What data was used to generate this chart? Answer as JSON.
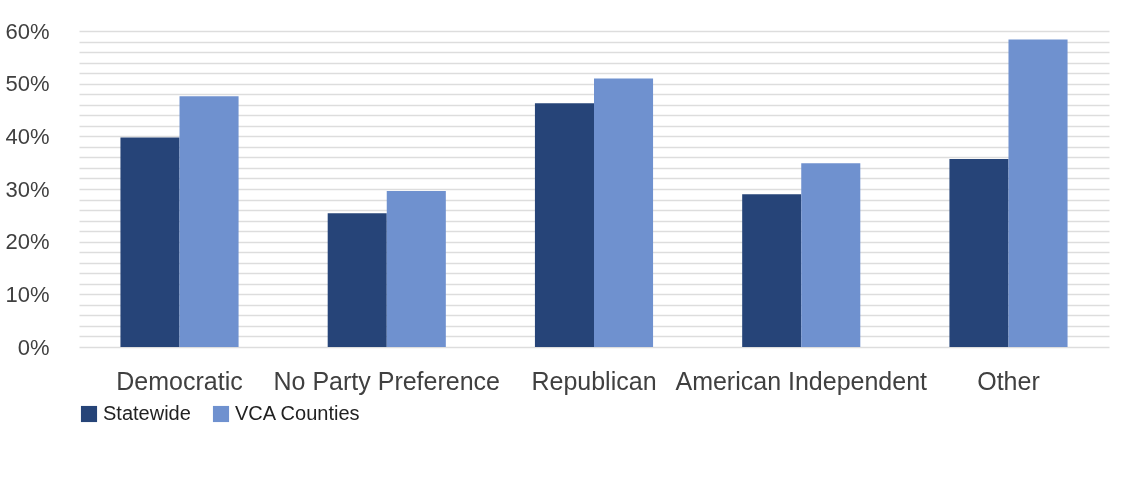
{
  "chart_data": {
    "type": "bar",
    "categories": [
      "Democratic",
      "No Party Preference",
      "Republican",
      "American Independent",
      "Other"
    ],
    "series": [
      {
        "name": "Statewide",
        "color": "#264478",
        "values": [
          39.8,
          25.4,
          46.3,
          29.0,
          35.7
        ]
      },
      {
        "name": "VCA Counties",
        "color": "#6f91cf",
        "values": [
          47.6,
          29.6,
          51.0,
          34.9,
          58.4
        ]
      }
    ],
    "ylim": [
      0,
      60
    ],
    "yticks": [
      {
        "value": 0,
        "label": "0%"
      },
      {
        "value": 2,
        "label": null
      },
      {
        "value": 4,
        "label": null
      },
      {
        "value": 6,
        "label": null
      },
      {
        "value": 8,
        "label": null
      },
      {
        "value": 10,
        "label": "10%"
      },
      {
        "value": 12,
        "label": null
      },
      {
        "value": 14,
        "label": null
      },
      {
        "value": 16,
        "label": null
      },
      {
        "value": 18,
        "label": null
      },
      {
        "value": 20,
        "label": "20%"
      },
      {
        "value": 22,
        "label": null
      },
      {
        "value": 24,
        "label": null
      },
      {
        "value": 26,
        "label": null
      },
      {
        "value": 28,
        "label": null
      },
      {
        "value": 30,
        "label": "30%"
      },
      {
        "value": 32,
        "label": null
      },
      {
        "value": 34,
        "label": null
      },
      {
        "value": 36,
        "label": null
      },
      {
        "value": 38,
        "label": null
      },
      {
        "value": 40,
        "label": "40%"
      },
      {
        "value": 42,
        "label": null
      },
      {
        "value": 44,
        "label": null
      },
      {
        "value": 46,
        "label": null
      },
      {
        "value": 48,
        "label": null
      },
      {
        "value": 50,
        "label": "50%"
      },
      {
        "value": 52,
        "label": null
      },
      {
        "value": 54,
        "label": null
      },
      {
        "value": 56,
        "label": null
      },
      {
        "value": 58,
        "label": null
      },
      {
        "value": 60,
        "label": "60%"
      }
    ],
    "grid": "y",
    "legend": "bottom"
  }
}
